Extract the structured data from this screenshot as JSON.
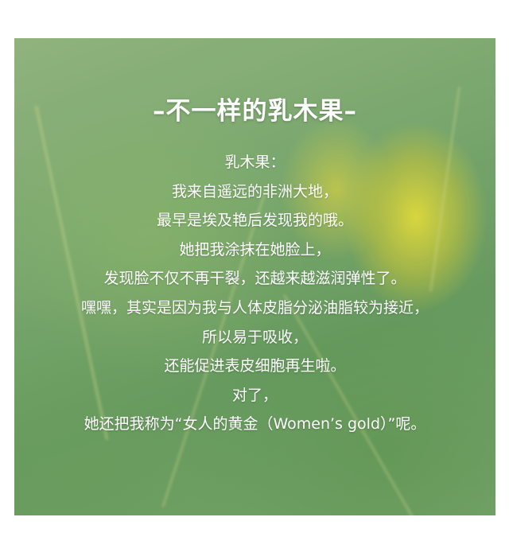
{
  "title": "–不一样的乳木果–",
  "lines": [
    "乳木果：",
    "我来自遥远的非洲大地，",
    "最早是埃及艳后发现我的哦。",
    "她把我涂抹在她脸上，",
    "发现脸不仅不再干裂，还越来越滋润弹性了。",
    "嘿嘿，其实是因为我与人体皮脂分泌油脂较为接近，",
    "所以易于吸收，",
    "还能促进表皮细胞再生啦。",
    "对了，",
    "她还把我称为“女人的黄金（Women’s gold）”呢。"
  ],
  "colors": {
    "text": "#ffffff",
    "background_green": "#7fac72",
    "fruit_yellow": "#e6dc3c"
  }
}
